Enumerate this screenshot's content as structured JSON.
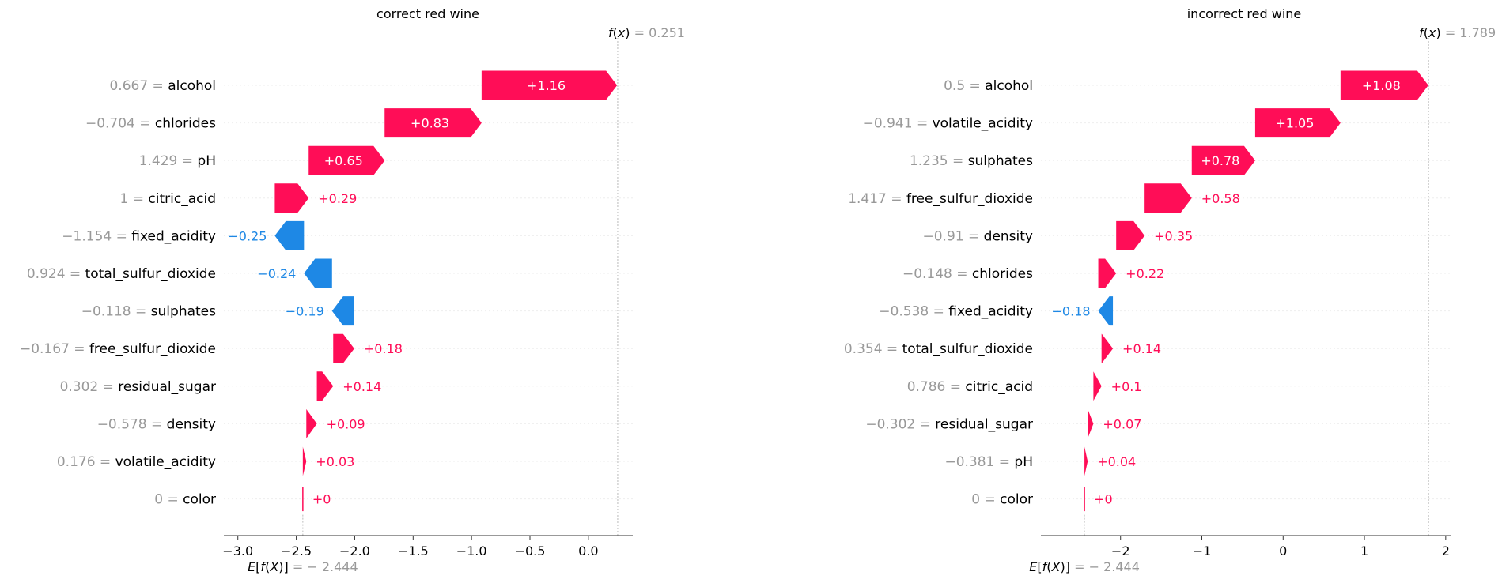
{
  "chart_data": [
    {
      "type": "waterfall",
      "title": "correct red wine",
      "fx_label": "f(x)",
      "fx_value": "0.251",
      "base_label": "E[f(X)]",
      "base_value": "-2.444",
      "base_value_num": -2.444,
      "fx_value_num": 0.251,
      "xlim": [
        -3.12,
        0.38
      ],
      "xticks": [
        {
          "value": -3.0,
          "label": "−3.0"
        },
        {
          "value": -2.5,
          "label": "−2.5"
        },
        {
          "value": -2.0,
          "label": "−2.0"
        },
        {
          "value": -1.5,
          "label": "−1.5"
        },
        {
          "value": -1.0,
          "label": "−1.0"
        },
        {
          "value": -0.5,
          "label": "−0.5"
        },
        {
          "value": 0.0,
          "label": "0.0"
        }
      ],
      "features": [
        {
          "name": "alcohol",
          "value": "0.667",
          "contribution": 1.16,
          "label": "+1.16"
        },
        {
          "name": "chlorides",
          "value": "−0.704",
          "contribution": 0.83,
          "label": "+0.83"
        },
        {
          "name": "pH",
          "value": "1.429",
          "contribution": 0.65,
          "label": "+0.65"
        },
        {
          "name": "citric_acid",
          "value": "1",
          "contribution": 0.29,
          "label": "+0.29"
        },
        {
          "name": "fixed_acidity",
          "value": "−1.154",
          "contribution": -0.25,
          "label": "−0.25"
        },
        {
          "name": "total_sulfur_dioxide",
          "value": "0.924",
          "contribution": -0.24,
          "label": "−0.24"
        },
        {
          "name": "sulphates",
          "value": "−0.118",
          "contribution": -0.19,
          "label": "−0.19"
        },
        {
          "name": "free_sulfur_dioxide",
          "value": "−0.167",
          "contribution": 0.18,
          "label": "+0.18"
        },
        {
          "name": "residual_sugar",
          "value": "0.302",
          "contribution": 0.14,
          "label": "+0.14"
        },
        {
          "name": "density",
          "value": "−0.578",
          "contribution": 0.09,
          "label": "+0.09"
        },
        {
          "name": "volatile_acidity",
          "value": "0.176",
          "contribution": 0.03,
          "label": "+0.03"
        },
        {
          "name": "color",
          "value": "0",
          "contribution": 0.0,
          "label": "+0"
        }
      ]
    },
    {
      "type": "waterfall",
      "title": "incorrect red wine",
      "fx_label": "f(x)",
      "fx_value": "1.789",
      "base_label": "E[f(X)]",
      "base_value": "-2.444",
      "base_value_num": -2.444,
      "fx_value_num": 1.789,
      "xlim": [
        -2.98,
        2.06
      ],
      "xticks": [
        {
          "value": -2,
          "label": "−2"
        },
        {
          "value": -1,
          "label": "−1"
        },
        {
          "value": 0,
          "label": "0"
        },
        {
          "value": 1,
          "label": "1"
        },
        {
          "value": 2,
          "label": "2"
        }
      ],
      "features": [
        {
          "name": "alcohol",
          "value": "0.5",
          "contribution": 1.08,
          "label": "+1.08"
        },
        {
          "name": "volatile_acidity",
          "value": "−0.941",
          "contribution": 1.05,
          "label": "+1.05"
        },
        {
          "name": "sulphates",
          "value": "1.235",
          "contribution": 0.78,
          "label": "+0.78"
        },
        {
          "name": "free_sulfur_dioxide",
          "value": "1.417",
          "contribution": 0.58,
          "label": "+0.58"
        },
        {
          "name": "density",
          "value": "−0.91",
          "contribution": 0.35,
          "label": "+0.35"
        },
        {
          "name": "chlorides",
          "value": "−0.148",
          "contribution": 0.22,
          "label": "+0.22"
        },
        {
          "name": "fixed_acidity",
          "value": "−0.538",
          "contribution": -0.18,
          "label": "−0.18"
        },
        {
          "name": "total_sulfur_dioxide",
          "value": "0.354",
          "contribution": 0.14,
          "label": "+0.14"
        },
        {
          "name": "citric_acid",
          "value": "0.786",
          "contribution": 0.1,
          "label": "+0.1"
        },
        {
          "name": "residual_sugar",
          "value": "−0.302",
          "contribution": 0.07,
          "label": "+0.07"
        },
        {
          "name": "pH",
          "value": "−0.381",
          "contribution": 0.04,
          "label": "+0.04"
        },
        {
          "name": "color",
          "value": "0",
          "contribution": 0.0,
          "label": "+0"
        }
      ]
    }
  ],
  "colors": {
    "positive": "#ff0d57",
    "negative": "#1e88e5",
    "value_gray": "#999999",
    "text": "#000000",
    "grid": "#dddddd"
  }
}
